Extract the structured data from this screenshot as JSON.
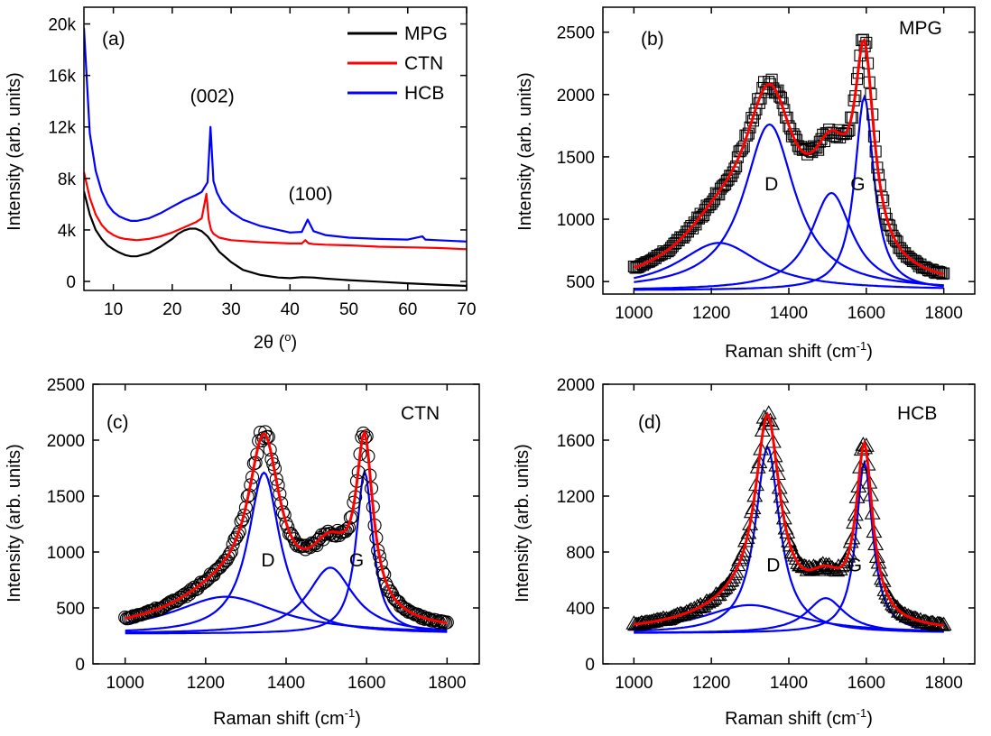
{
  "chart_data": [
    {
      "id": "a",
      "type": "line",
      "panel_label": "(a)",
      "xlabel": "2θ (o)",
      "xlabel_parts": {
        "theta": "2θ (",
        "degree": "o",
        "close": ")"
      },
      "ylabel": "Intensity (arb. units)",
      "xlim": [
        5,
        70
      ],
      "ylim": [
        -700,
        21300
      ],
      "xticks": [
        10,
        20,
        30,
        40,
        50,
        60,
        70
      ],
      "xtick_labels": [
        "10",
        "20",
        "30",
        "40",
        "50",
        "60",
        "70"
      ],
      "yticks": [
        0,
        4000,
        8000,
        12000,
        16000,
        20000
      ],
      "ytick_labels": [
        "0",
        "4k",
        "8k",
        "12k",
        "16k",
        "20k"
      ],
      "legend_position": "top-right",
      "series": [
        {
          "name": "MPG",
          "color": "#000000",
          "x": [
            5,
            6,
            7,
            8,
            9,
            10,
            11,
            12,
            13,
            14,
            16,
            18,
            20,
            21,
            22,
            23,
            24,
            25,
            26,
            27,
            28,
            30,
            32,
            35,
            38,
            40,
            42,
            44,
            46,
            50,
            55,
            60,
            65,
            70
          ],
          "y": [
            7000,
            5200,
            4000,
            3300,
            2800,
            2500,
            2250,
            2050,
            1950,
            1950,
            2200,
            2700,
            3300,
            3700,
            3950,
            4100,
            4100,
            3900,
            3500,
            2900,
            2300,
            1500,
            900,
            500,
            300,
            250,
            330,
            300,
            220,
            100,
            -20,
            -150,
            -250,
            -350
          ]
        },
        {
          "name": "CTN",
          "color": "#ff0000",
          "x": [
            5,
            6,
            7,
            8,
            9,
            10,
            11,
            12,
            13,
            14,
            16,
            18,
            20,
            22,
            24,
            25,
            25.8,
            26.2,
            26.6,
            27,
            28,
            30,
            35,
            40,
            42,
            42.6,
            43.2,
            44,
            46,
            50,
            55,
            60,
            65,
            70
          ],
          "y": [
            8500,
            6500,
            5200,
            4400,
            3900,
            3600,
            3400,
            3300,
            3250,
            3200,
            3300,
            3500,
            3800,
            4200,
            4600,
            4900,
            6800,
            4800,
            4000,
            3700,
            3400,
            3200,
            3050,
            2950,
            2950,
            3200,
            2950,
            2900,
            2850,
            2800,
            2700,
            2650,
            2600,
            2500
          ]
        },
        {
          "name": "HCB",
          "color": "#0000ff",
          "x": [
            5,
            6,
            7,
            8,
            9,
            10,
            11,
            12,
            13,
            14,
            16,
            18,
            20,
            22,
            24,
            25,
            26,
            26.5,
            27,
            27.6,
            28.5,
            30,
            32,
            35,
            38,
            40,
            42,
            43,
            44,
            46,
            50,
            55,
            60,
            62.5,
            63,
            65,
            70
          ],
          "y": [
            19700,
            11500,
            8600,
            7000,
            6000,
            5400,
            5050,
            4850,
            4700,
            4700,
            4900,
            5300,
            5800,
            6300,
            6700,
            6950,
            7700,
            12000,
            7800,
            6900,
            6100,
            5400,
            4800,
            4300,
            4000,
            3800,
            3850,
            4800,
            3900,
            3600,
            3400,
            3300,
            3250,
            3500,
            3250,
            3200,
            3100
          ]
        }
      ],
      "annotations": [
        {
          "text": "(002)",
          "x": 26.8,
          "y": 13900
        },
        {
          "text": "(100)",
          "x": 43.5,
          "y": 6300
        }
      ]
    },
    {
      "id": "b",
      "type": "line",
      "panel_label": "(b)",
      "sample_label": "MPG",
      "xlabel": "Raman shift (cm-1)",
      "xlabel_parts": {
        "main": "Raman shift (cm",
        "sup": "-1",
        "close": ")"
      },
      "ylabel": "Intensity (arb. units)",
      "xlim": [
        920,
        1880
      ],
      "ylim": [
        400,
        2700
      ],
      "xticks": [
        1000,
        1200,
        1400,
        1600,
        1800
      ],
      "yticks": [
        500,
        1000,
        1500,
        2000,
        2500
      ],
      "marker": "square",
      "baseline": 430,
      "peaks": [
        {
          "label": "",
          "center": 1220,
          "height": 380,
          "width": 130
        },
        {
          "label": "D",
          "center": 1350,
          "height": 1330,
          "width": 80
        },
        {
          "label": "",
          "center": 1510,
          "height": 780,
          "width": 65
        },
        {
          "label": "G",
          "center": 1595,
          "height": 1550,
          "width": 30
        }
      ],
      "band_labels": [
        {
          "text": "D",
          "x": 1355,
          "y": 1230
        },
        {
          "text": "G",
          "x": 1578,
          "y": 1230
        }
      ]
    },
    {
      "id": "c",
      "type": "line",
      "panel_label": "(c)",
      "sample_label": "CTN",
      "xlabel": "Raman shift (cm-1)",
      "xlabel_parts": {
        "main": "Raman shift (cm",
        "sup": "-1",
        "close": ")"
      },
      "ylabel": "Intensity (arb. units)",
      "xlim": [
        920,
        1880
      ],
      "ylim": [
        0,
        2500
      ],
      "xticks": [
        1000,
        1200,
        1400,
        1600,
        1800
      ],
      "yticks": [
        0,
        500,
        1000,
        1500,
        2000,
        2500
      ],
      "marker": "circle",
      "baseline": 270,
      "peaks": [
        {
          "label": "",
          "center": 1250,
          "height": 330,
          "width": 160
        },
        {
          "label": "D",
          "center": 1345,
          "height": 1440,
          "width": 48
        },
        {
          "label": "",
          "center": 1510,
          "height": 590,
          "width": 70
        },
        {
          "label": "G",
          "center": 1595,
          "height": 1450,
          "width": 25
        }
      ],
      "band_labels": [
        {
          "text": "D",
          "x": 1355,
          "y": 870
        },
        {
          "text": "G",
          "x": 1575,
          "y": 870
        }
      ]
    },
    {
      "id": "d",
      "type": "line",
      "panel_label": "(d)",
      "sample_label": "HCB",
      "xlabel": "Raman shift (cm-1)",
      "xlabel_parts": {
        "main": "Raman shift (cm",
        "sup": "-1",
        "close": ")"
      },
      "ylabel": "Intensity (arb. units)",
      "xlim": [
        920,
        1880
      ],
      "ylim": [
        0,
        2000
      ],
      "xticks": [
        1000,
        1200,
        1400,
        1600,
        1800
      ],
      "yticks": [
        0,
        400,
        800,
        1200,
        1600,
        2000
      ],
      "marker": "triangle",
      "baseline": 220,
      "peaks": [
        {
          "label": "",
          "center": 1300,
          "height": 200,
          "width": 150
        },
        {
          "label": "D",
          "center": 1345,
          "height": 1330,
          "width": 38
        },
        {
          "label": "",
          "center": 1495,
          "height": 250,
          "width": 60
        },
        {
          "label": "G",
          "center": 1595,
          "height": 1220,
          "width": 26
        }
      ],
      "band_labels": [
        {
          "text": "D",
          "x": 1360,
          "y": 660
        },
        {
          "text": "G",
          "x": 1570,
          "y": 660
        }
      ]
    }
  ],
  "colors": {
    "fit": "#ff0000",
    "component": "#0000ff",
    "data": "#000000",
    "frame": "#000000"
  }
}
